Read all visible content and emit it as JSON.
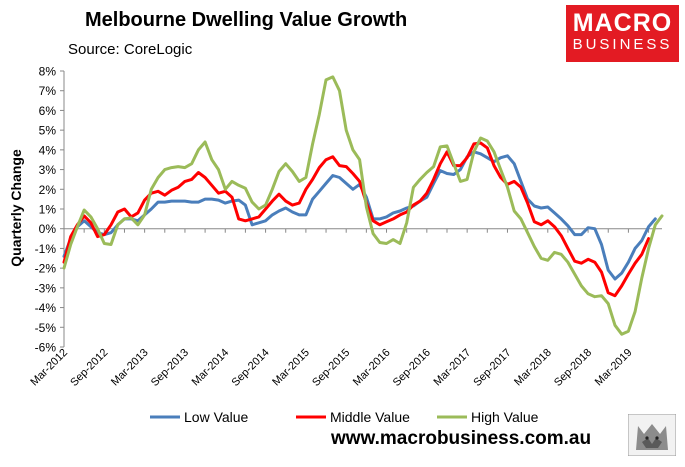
{
  "chart_data": {
    "type": "line",
    "title": "Melbourne Dwelling Value Growth",
    "source": "Source: CoreLogic",
    "ylabel": "Quarterly Change",
    "xlabel": "",
    "ylim": [
      -6,
      8
    ],
    "y_ticks": [
      8,
      7,
      6,
      5,
      4,
      3,
      2,
      1,
      0,
      -1,
      -2,
      -3,
      -4,
      -5,
      -6
    ],
    "y_tick_labels": [
      "8%",
      "7%",
      "6%",
      "5%",
      "4%",
      "3%",
      "2%",
      "1%",
      "0%",
      "-1%",
      "-2%",
      "-3%",
      "-4%",
      "-5%",
      "-6%"
    ],
    "x_start_month": "Mar-2012",
    "x_months": 90,
    "x_tick_months": [
      0,
      6,
      12,
      18,
      24,
      30,
      36,
      42,
      48,
      54,
      60,
      66,
      72,
      78,
      84
    ],
    "x_tick_labels": [
      "Mar-2012",
      "Sep-2012",
      "Mar-2013",
      "Sep-2013",
      "Mar-2014",
      "Sep-2014",
      "Mar-2015",
      "Sep-2015",
      "Mar-2016",
      "Sep-2016",
      "Mar-2017",
      "Sep-2017",
      "Mar-2018",
      "Sep-2018",
      "Mar-2019"
    ],
    "legend_position": "bottom",
    "series": [
      {
        "name": "Low Value",
        "color": "#4a7ebb",
        "values": [
          -1.4,
          -0.5,
          0.1,
          0.4,
          0.1,
          -0.2,
          -0.3,
          -0.2,
          0.2,
          0.5,
          0.5,
          0.4,
          0.7,
          1.0,
          1.35,
          1.35,
          1.4,
          1.4,
          1.4,
          1.35,
          1.35,
          1.5,
          1.5,
          1.45,
          1.3,
          1.4,
          1.45,
          1.2,
          0.2,
          0.3,
          0.4,
          0.7,
          0.9,
          1.05,
          0.85,
          0.7,
          0.7,
          1.5,
          1.9,
          2.3,
          2.7,
          2.6,
          2.3,
          2.0,
          2.25,
          1.6,
          0.5,
          0.5,
          0.6,
          0.8,
          0.9,
          1.05,
          1.15,
          1.4,
          1.6,
          2.3,
          2.95,
          2.8,
          2.75,
          3.0,
          3.65,
          3.9,
          3.8,
          3.6,
          3.4,
          3.6,
          3.7,
          3.3,
          2.4,
          1.5,
          1.15,
          1.05,
          1.1,
          0.8,
          0.5,
          0.15,
          -0.3,
          -0.3,
          0.05,
          0.0,
          -0.8,
          -2.1,
          -2.55,
          -2.25,
          -1.7,
          -1.0,
          -0.6,
          0.1,
          0.5
        ],
        "x_start": 0
      },
      {
        "name": "Middle Value",
        "color": "#ff0000",
        "values": [
          -1.7,
          -0.4,
          0.2,
          0.65,
          0.3,
          -0.4,
          -0.3,
          0.2,
          0.85,
          1.0,
          0.6,
          0.8,
          1.45,
          1.8,
          1.9,
          1.7,
          1.95,
          2.1,
          2.4,
          2.5,
          2.85,
          2.6,
          2.2,
          1.8,
          1.9,
          1.6,
          0.5,
          0.4,
          0.5,
          0.6,
          1.0,
          1.4,
          1.75,
          1.4,
          1.2,
          1.3,
          2.0,
          2.5,
          3.1,
          3.5,
          3.65,
          3.2,
          3.15,
          2.8,
          2.4,
          1.3,
          0.4,
          0.2,
          0.35,
          0.5,
          0.7,
          0.85,
          1.2,
          1.4,
          1.8,
          2.5,
          3.3,
          3.9,
          3.2,
          3.2,
          3.6,
          4.3,
          4.35,
          4.1,
          3.2,
          2.6,
          2.25,
          2.4,
          2.1,
          1.3,
          0.35,
          0.2,
          0.4,
          0.1,
          -0.35,
          -1.0,
          -1.65,
          -1.75,
          -1.55,
          -1.7,
          -2.2,
          -3.25,
          -3.4,
          -2.9,
          -2.3,
          -1.75,
          -1.3,
          -0.5
        ],
        "x_start": 0
      },
      {
        "name": "High Value",
        "color": "#9bbb59",
        "values": [
          -2.0,
          -0.8,
          0.1,
          0.95,
          0.6,
          0.0,
          -0.75,
          -0.8,
          0.2,
          0.5,
          0.55,
          0.2,
          0.7,
          2.0,
          2.6,
          3.0,
          3.1,
          3.15,
          3.1,
          3.3,
          4.0,
          4.4,
          3.5,
          3.0,
          2.0,
          2.4,
          2.2,
          2.05,
          1.35,
          1.0,
          1.2,
          2.0,
          2.9,
          3.3,
          2.9,
          2.4,
          2.6,
          4.3,
          5.8,
          7.55,
          7.7,
          7.0,
          5.0,
          4.0,
          3.5,
          1.1,
          -0.25,
          -0.7,
          -0.75,
          -0.55,
          -0.75,
          0.3,
          2.1,
          2.5,
          2.85,
          3.15,
          4.15,
          4.2,
          3.3,
          2.4,
          2.5,
          3.9,
          4.6,
          4.45,
          3.9,
          3.0,
          2.1,
          0.9,
          0.5,
          -0.2,
          -0.9,
          -1.5,
          -1.6,
          -1.2,
          -1.3,
          -1.7,
          -2.3,
          -2.9,
          -3.3,
          -3.45,
          -3.4,
          -3.8,
          -4.9,
          -5.35,
          -5.2,
          -4.2,
          -2.5,
          -1.0,
          0.2,
          0.65
        ],
        "x_start": 0
      }
    ]
  },
  "branding": {
    "logo_top": "MACRO",
    "logo_bottom": "BUSINESS",
    "website": "www.macrobusiness.com.au"
  }
}
